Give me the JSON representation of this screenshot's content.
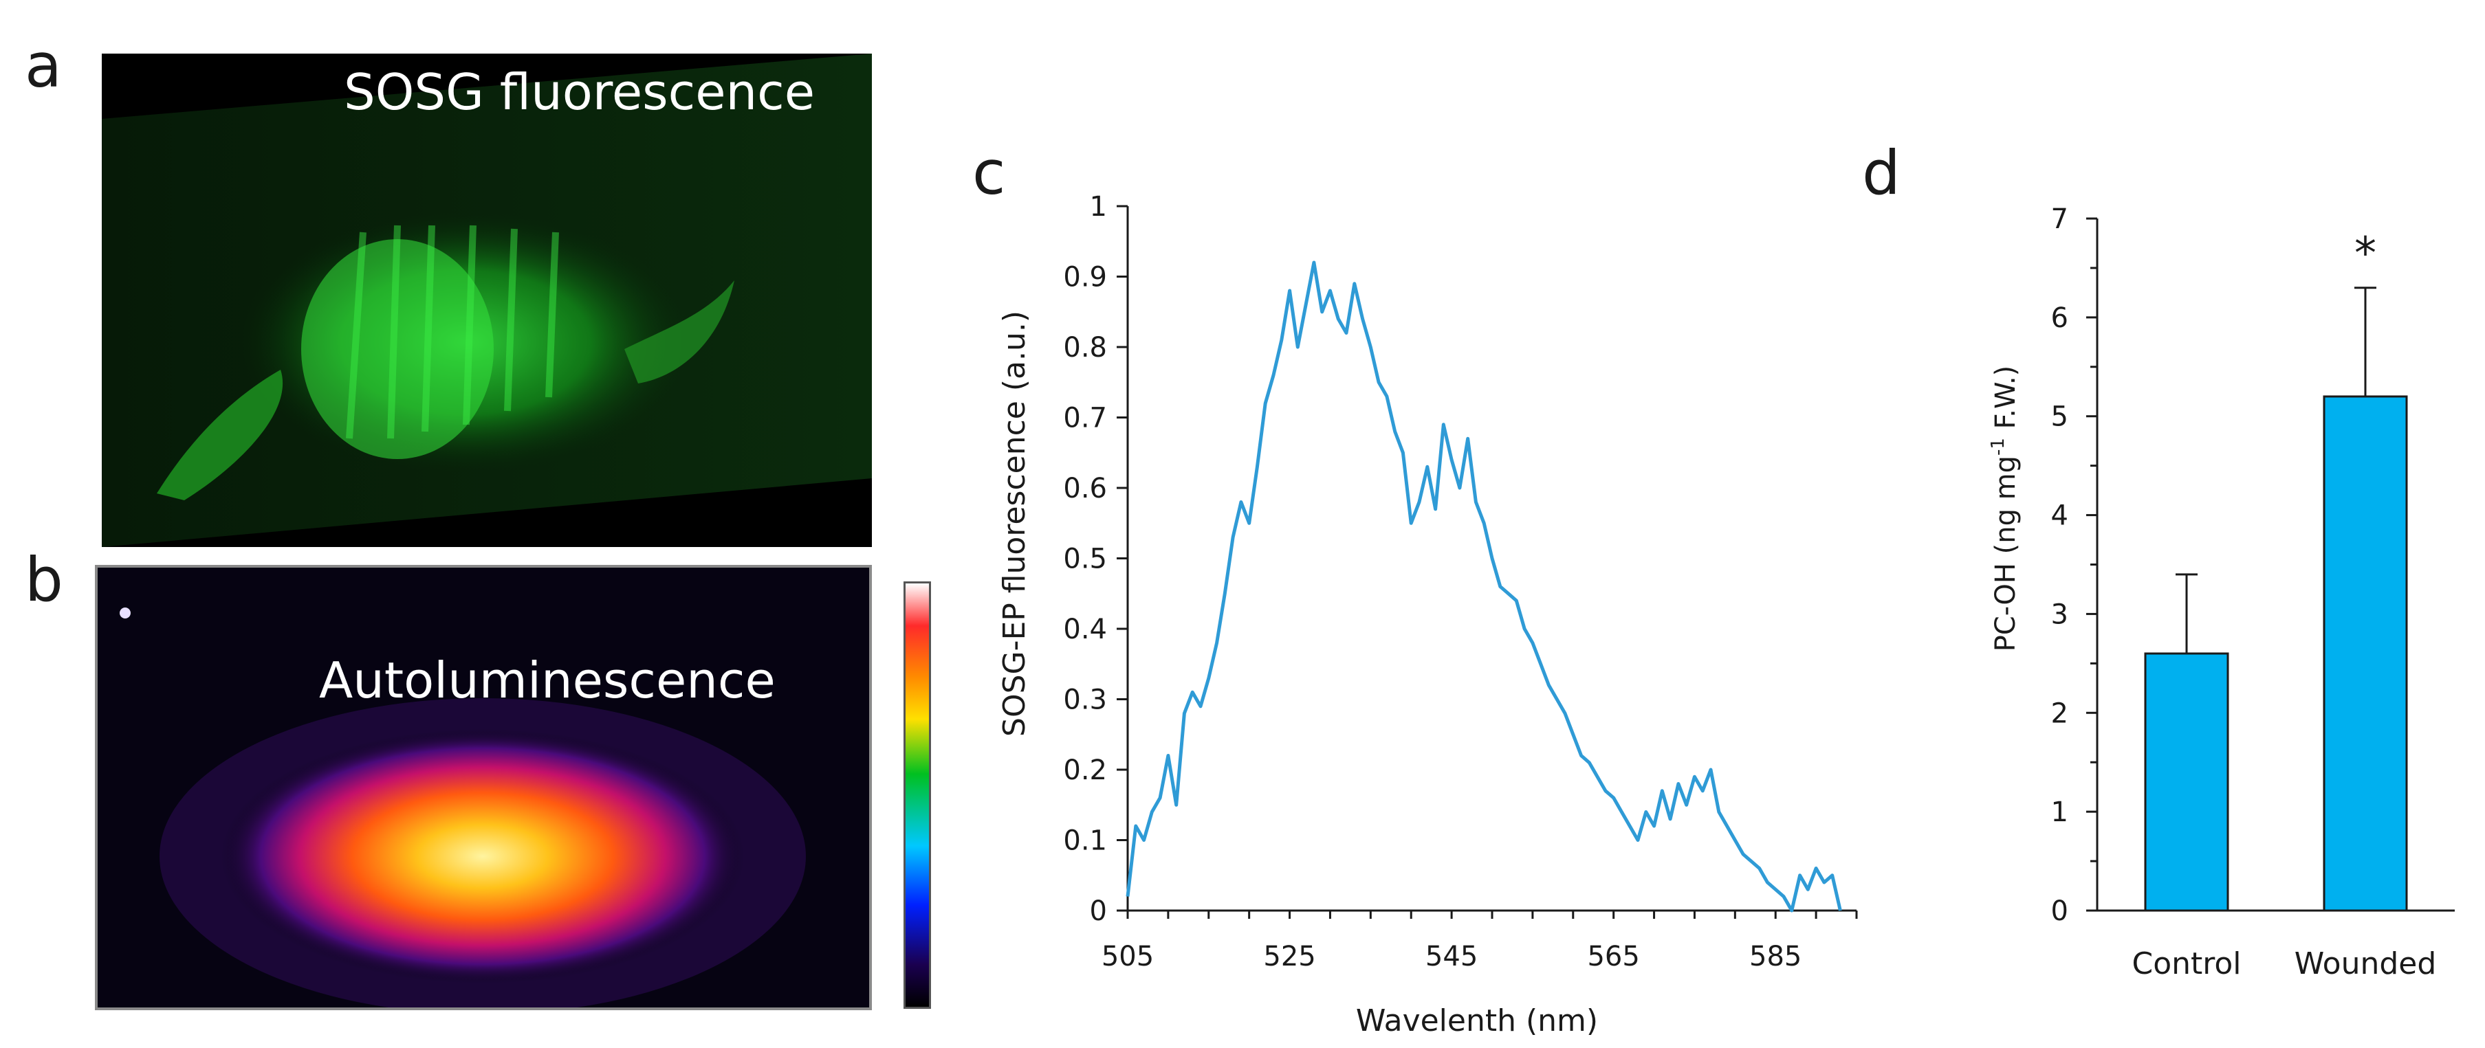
{
  "panels": {
    "a": {
      "letter": "a",
      "label": "SOSG fluorescence"
    },
    "b": {
      "letter": "b",
      "label": "Autoluminescence"
    },
    "c": {
      "letter": "c"
    },
    "d": {
      "letter": "d"
    }
  },
  "colors": {
    "line": "#2f9bd6",
    "bar": "#00b0ef",
    "axis": "#1a1a1a"
  },
  "chart_data": [
    {
      "panel": "c",
      "type": "line",
      "title": "",
      "xlabel": "Wavelenth (nm)",
      "ylabel": "SOSG-EP fluorescence (a.u.)",
      "xlim": [
        505,
        595
      ],
      "ylim": [
        0,
        1
      ],
      "xticks": [
        505,
        525,
        545,
        565,
        585
      ],
      "yticks": [
        "0",
        "0.1",
        "0.2",
        "0.3",
        "0.4",
        "0.5",
        "0.6",
        "0.7",
        "0.8",
        "0.9",
        "1"
      ],
      "series": [
        {
          "name": "SOSG-EP fluorescence",
          "x": [
            505,
            506,
            507,
            508,
            509,
            510,
            511,
            512,
            513,
            514,
            515,
            516,
            517,
            518,
            519,
            520,
            521,
            522,
            523,
            524,
            525,
            526,
            527,
            528,
            529,
            530,
            531,
            532,
            533,
            534,
            535,
            536,
            537,
            538,
            539,
            540,
            541,
            542,
            543,
            544,
            545,
            546,
            547,
            548,
            549,
            550,
            551,
            552,
            553,
            554,
            555,
            556,
            557,
            558,
            559,
            560,
            561,
            562,
            563,
            564,
            565,
            566,
            567,
            568,
            569,
            570,
            571,
            572,
            573,
            574,
            575,
            576,
            577,
            578,
            579,
            580,
            581,
            582,
            583,
            584,
            585,
            586,
            587,
            588,
            589,
            590,
            591,
            592,
            593
          ],
          "y": [
            0.02,
            0.12,
            0.1,
            0.14,
            0.16,
            0.22,
            0.15,
            0.28,
            0.31,
            0.29,
            0.33,
            0.38,
            0.45,
            0.53,
            0.58,
            0.55,
            0.63,
            0.72,
            0.76,
            0.81,
            0.88,
            0.8,
            0.86,
            0.92,
            0.85,
            0.88,
            0.84,
            0.82,
            0.89,
            0.84,
            0.8,
            0.75,
            0.73,
            0.68,
            0.65,
            0.55,
            0.58,
            0.63,
            0.57,
            0.69,
            0.64,
            0.6,
            0.67,
            0.58,
            0.55,
            0.5,
            0.46,
            0.45,
            0.44,
            0.4,
            0.38,
            0.35,
            0.32,
            0.3,
            0.28,
            0.25,
            0.22,
            0.21,
            0.19,
            0.17,
            0.16,
            0.14,
            0.12,
            0.1,
            0.14,
            0.12,
            0.17,
            0.13,
            0.18,
            0.15,
            0.19,
            0.17,
            0.2,
            0.14,
            0.12,
            0.1,
            0.08,
            0.07,
            0.06,
            0.04,
            0.03,
            0.02,
            0.0,
            0.05,
            0.03,
            0.06,
            0.04,
            0.05,
            0.0
          ]
        }
      ]
    },
    {
      "panel": "d",
      "type": "bar",
      "title": "",
      "xlabel": "",
      "ylabel": "PC-OH (ng mg-1 F.W.)",
      "ylabel_main": "PC-OH  (ng mg",
      "ylabel_sup": "-1",
      "ylabel_tail": " F.W.)",
      "categories": [
        "Control",
        "Wounded"
      ],
      "values": [
        2.6,
        5.2
      ],
      "errors": [
        0.8,
        1.1
      ],
      "significance": [
        "",
        "*"
      ],
      "ylim": [
        0,
        7
      ],
      "yticks": [
        "0",
        "1",
        "2",
        "3",
        "4",
        "5",
        "6",
        "7"
      ]
    }
  ]
}
